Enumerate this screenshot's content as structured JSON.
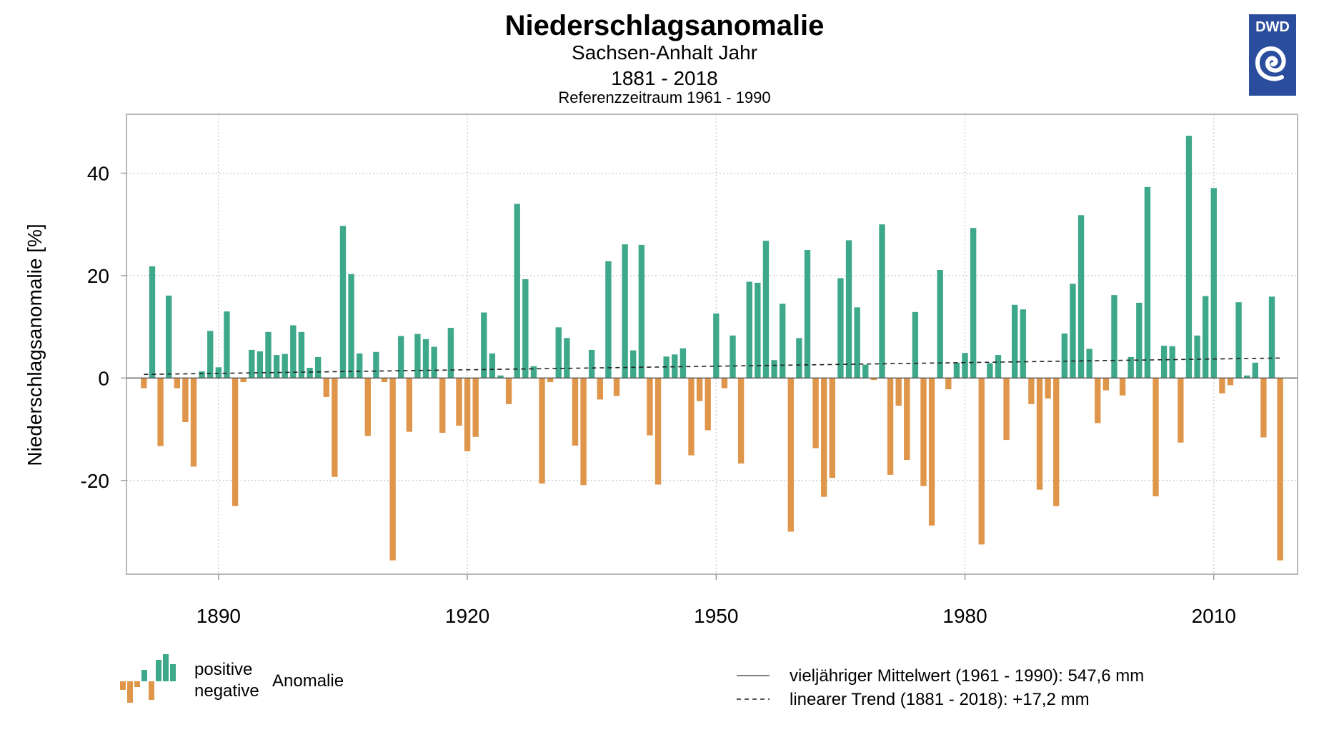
{
  "header": {
    "title": "Niederschlagsanomalie",
    "subtitle_region": "Sachsen-Anhalt Jahr",
    "subtitle_period": "1881 - 2018",
    "subtitle_reference": "Referenzzeitraum 1961 - 1990"
  },
  "logo": {
    "text": "DWD",
    "color": "#2a4d9e"
  },
  "colors": {
    "positive": "#3ea88a",
    "negative": "#df964a",
    "grid": "#c8c8c8",
    "frame": "#9a9a9a"
  },
  "legend_left": {
    "positive_label": "positive",
    "negative_label": "negative",
    "anomaly_label": "Anomalie"
  },
  "legend_right": {
    "mean_label": "vieljähriger Mittelwert (1961 - 1990): 547,6 mm",
    "trend_label": "linearer Trend (1881 - 2018): +17,2 mm"
  },
  "chart_data": {
    "type": "bar",
    "title": "Niederschlagsanomalie",
    "xlabel": "",
    "ylabel": "Niederschlagsanomalie [%]",
    "xlim": [
      1878.9,
      2020.1
    ],
    "ylim": [
      -38.3,
      51.5
    ],
    "x_ticks": [
      1890,
      1920,
      1950,
      1980,
      2010
    ],
    "y_ticks": [
      -20,
      0,
      20,
      40
    ],
    "grid": true,
    "trend": {
      "start_year": 1881,
      "end_year": 2018,
      "start_value": 0.7,
      "end_value": 3.9
    },
    "years": [
      1881,
      1882,
      1883,
      1884,
      1885,
      1886,
      1887,
      1888,
      1889,
      1890,
      1891,
      1892,
      1893,
      1894,
      1895,
      1896,
      1897,
      1898,
      1899,
      1900,
      1901,
      1902,
      1903,
      1904,
      1905,
      1906,
      1907,
      1908,
      1909,
      1910,
      1911,
      1912,
      1913,
      1914,
      1915,
      1916,
      1917,
      1918,
      1919,
      1920,
      1921,
      1922,
      1923,
      1924,
      1925,
      1926,
      1927,
      1928,
      1929,
      1930,
      1931,
      1932,
      1933,
      1934,
      1935,
      1936,
      1937,
      1938,
      1939,
      1940,
      1941,
      1942,
      1943,
      1944,
      1945,
      1946,
      1947,
      1948,
      1949,
      1950,
      1951,
      1952,
      1953,
      1954,
      1955,
      1956,
      1957,
      1958,
      1959,
      1960,
      1961,
      1962,
      1963,
      1964,
      1965,
      1966,
      1967,
      1968,
      1969,
      1970,
      1971,
      1972,
      1973,
      1974,
      1975,
      1976,
      1977,
      1978,
      1979,
      1980,
      1981,
      1982,
      1983,
      1984,
      1985,
      1986,
      1987,
      1988,
      1989,
      1990,
      1991,
      1992,
      1993,
      1994,
      1995,
      1996,
      1997,
      1998,
      1999,
      2000,
      2001,
      2002,
      2003,
      2004,
      2005,
      2006,
      2007,
      2008,
      2009,
      2010,
      2011,
      2012,
      2013,
      2014,
      2015,
      2016,
      2017,
      2018
    ],
    "values": [
      -2.0,
      21.8,
      -13.3,
      16.1,
      -2.0,
      -8.6,
      -17.3,
      1.3,
      9.2,
      2.1,
      13.0,
      -25.0,
      -0.8,
      5.5,
      5.2,
      9.0,
      4.5,
      4.7,
      10.3,
      9.0,
      2.0,
      4.1,
      -3.7,
      -19.3,
      29.7,
      20.3,
      4.8,
      -11.3,
      5.1,
      -0.8,
      -35.6,
      8.2,
      -10.5,
      8.6,
      7.6,
      6.1,
      -10.7,
      9.8,
      -9.3,
      -14.3,
      -11.5,
      12.8,
      4.8,
      0.5,
      -5.1,
      34.0,
      19.3,
      2.3,
      -20.6,
      -0.8,
      9.9,
      7.8,
      -13.2,
      -20.9,
      5.5,
      -4.2,
      22.8,
      -3.5,
      26.1,
      5.4,
      26.0,
      -11.2,
      -20.8,
      4.2,
      4.6,
      5.8,
      -15.1,
      -4.5,
      -10.2,
      12.6,
      -2.0,
      8.3,
      -16.7,
      18.8,
      18.6,
      26.8,
      3.5,
      14.5,
      -30.0,
      7.8,
      25.0,
      -13.7,
      -23.2,
      -19.5,
      19.5,
      26.9,
      13.8,
      2.6,
      -0.4,
      30.0,
      -18.9,
      -5.4,
      -16.0,
      12.9,
      -21.1,
      -28.8,
      21.1,
      -2.2,
      3.0,
      4.9,
      29.3,
      -32.5,
      2.9,
      4.5,
      -12.1,
      14.3,
      13.4,
      -5.1,
      -21.8,
      -4.0,
      -25.0,
      8.7,
      18.4,
      31.8,
      5.7,
      -8.8,
      -2.4,
      16.2,
      -3.4,
      4.1,
      14.7,
      37.3,
      -23.1,
      6.3,
      6.2,
      -12.6,
      47.3,
      8.3,
      16.0,
      37.1,
      -3.0,
      -1.4,
      14.8,
      0.5,
      3.0,
      -11.6,
      15.9,
      -35.6
    ]
  }
}
